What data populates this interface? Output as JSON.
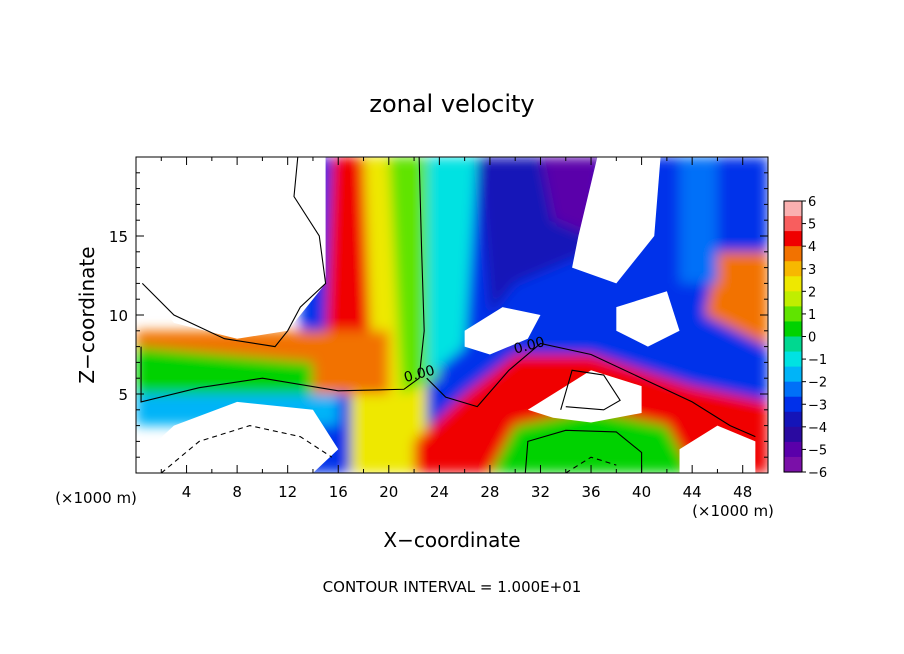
{
  "chart_data": {
    "type": "heatmap",
    "title": "zonal velocity",
    "xlabel": "X−coordinate",
    "ylabel": "Z−coordinate",
    "x_unit_label": "(×1000 m)",
    "x_unit_label_right": "(×1000 m)",
    "footer": "CONTOUR INTERVAL = 1.000E+01",
    "xlim": [
      0,
      50
    ],
    "ylim": [
      0,
      20
    ],
    "x_ticks": [
      4,
      8,
      12,
      16,
      20,
      24,
      28,
      32,
      36,
      40,
      44,
      48
    ],
    "y_ticks": [
      5,
      10,
      15
    ],
    "contour_labels": [
      {
        "text": "0.00",
        "x": 22.5,
        "y": 6.0
      },
      {
        "text": "0.00",
        "x": 31.2,
        "y": 7.8
      }
    ],
    "colorbar": {
      "min": -6,
      "max": 6,
      "tick_labels": [
        "6",
        "5",
        "4",
        "3",
        "2",
        "1",
        "0",
        "−1",
        "−2",
        "−3",
        "−4",
        "−5",
        "−6"
      ],
      "colors": [
        "#fab0b0",
        "#f85e5e",
        "#f00000",
        "#f27200",
        "#f7b800",
        "#eee800",
        "#c0ee00",
        "#60e400",
        "#00d200",
        "#00d890",
        "#00e2e2",
        "#00b4f8",
        "#0070f8",
        "#0030ea",
        "#1414b8",
        "#2a0aa0",
        "#5a00aa",
        "#7a10a8"
      ]
    }
  }
}
